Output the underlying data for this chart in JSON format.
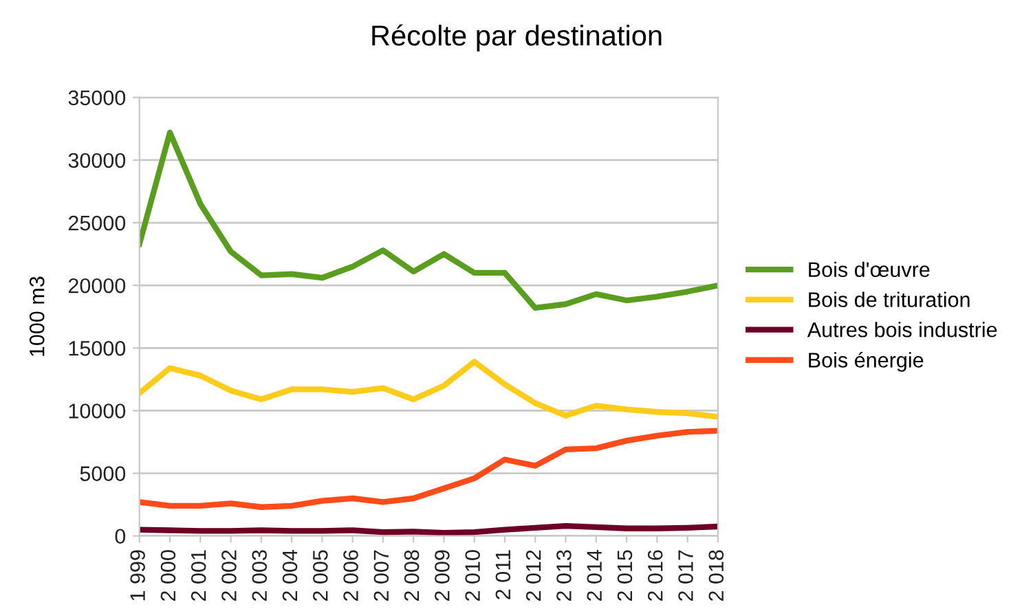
{
  "chart_data": {
    "type": "line",
    "title": "Récolte par destination",
    "ylabel": "1000 m3",
    "categories": [
      "1 999",
      "2 000",
      "2 001",
      "2 002",
      "2 003",
      "2 004",
      "2 005",
      "2 006",
      "2 007",
      "2 008",
      "2 009",
      "2 010",
      "2 011",
      "2 012",
      "2 013",
      "2 014",
      "2 015",
      "2 016",
      "2 017",
      "2 018"
    ],
    "series": [
      {
        "name": "Bois d'œuvre",
        "color": "#5a9e1f",
        "values": [
          23300,
          32200,
          26500,
          22700,
          20800,
          20900,
          20600,
          21500,
          22800,
          21100,
          22500,
          21000,
          21000,
          18200,
          18500,
          19300,
          18800,
          19100,
          19500,
          20000
        ]
      },
      {
        "name": "Bois de trituration",
        "color": "#ffcc19",
        "values": [
          11400,
          13400,
          12800,
          11600,
          10900,
          11700,
          11700,
          11500,
          11800,
          10900,
          12000,
          13900,
          12100,
          10600,
          9600,
          10400,
          10100,
          9900,
          9800,
          9500
        ]
      },
      {
        "name": "Autres bois industrie",
        "color": "#6e0026",
        "values": [
          500,
          450,
          400,
          400,
          450,
          400,
          400,
          450,
          300,
          350,
          250,
          300,
          500,
          650,
          800,
          700,
          600,
          600,
          650,
          750
        ]
      },
      {
        "name": "Bois énergie",
        "color": "#ff4a1a",
        "values": [
          2700,
          2400,
          2400,
          2600,
          2300,
          2400,
          2800,
          3000,
          2700,
          3000,
          3800,
          4600,
          6100,
          5600,
          6900,
          7000,
          7600,
          8000,
          8300,
          8400
        ]
      }
    ],
    "ylim": [
      0,
      35000
    ],
    "yticks": [
      0,
      5000,
      10000,
      15000,
      20000,
      25000,
      30000,
      35000
    ],
    "grid": "y",
    "legend": "right",
    "marker": "none",
    "line_style": "solid"
  }
}
